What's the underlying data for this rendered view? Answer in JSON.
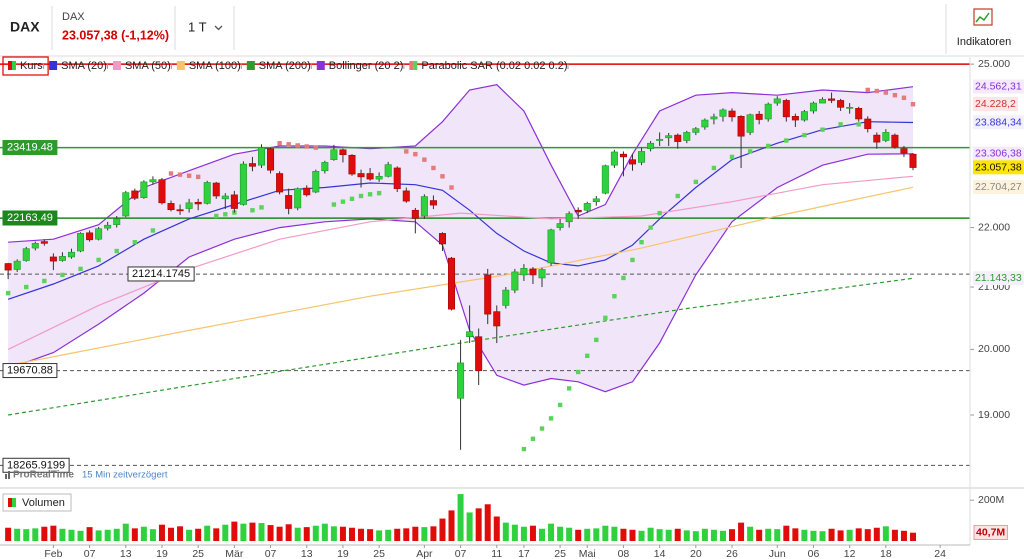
{
  "header": {
    "symbol": "DAX",
    "name": "DAX",
    "quote": "23.057,38 (-1,12%)",
    "interval": "1 T",
    "button": "Indikatoren"
  },
  "source": {
    "brand": "ProRealTime",
    "delay": "15 Min zeitverzögert"
  },
  "chart_data": {
    "type": "candlestick",
    "price_name": "Kurs",
    "up_color": "#2fd13f",
    "down_color": "#e00b0b",
    "log": true,
    "xlim": [
      -0.9,
      106.3
    ],
    "ylim": [
      18200,
      25120
    ],
    "yticks": [
      {
        "value": 19000,
        "label": "19.000"
      },
      {
        "value": 20000,
        "label": "20.000"
      },
      {
        "value": 21000,
        "label": "21.000"
      },
      {
        "value": 22000,
        "label": "22.000"
      },
      {
        "value": 25000,
        "label": "25.000"
      }
    ],
    "xticks": [
      {
        "value": 5,
        "label": "Feb"
      },
      {
        "value": 9,
        "label": "07"
      },
      {
        "value": 13,
        "label": "13"
      },
      {
        "value": 17,
        "label": "19"
      },
      {
        "value": 21,
        "label": "25"
      },
      {
        "value": 25,
        "label": "Mär"
      },
      {
        "value": 29,
        "label": "07"
      },
      {
        "value": 33,
        "label": "13"
      },
      {
        "value": 37,
        "label": "19"
      },
      {
        "value": 41,
        "label": "25"
      },
      {
        "value": 46,
        "label": "Apr"
      },
      {
        "value": 50,
        "label": "07"
      },
      {
        "value": 54,
        "label": "11"
      },
      {
        "value": 57,
        "label": "17"
      },
      {
        "value": 61,
        "label": "25"
      },
      {
        "value": 64,
        "label": "Mai"
      },
      {
        "value": 68,
        "label": "08"
      },
      {
        "value": 72,
        "label": "14"
      },
      {
        "value": 76,
        "label": "20"
      },
      {
        "value": 80,
        "label": "26"
      },
      {
        "value": 85,
        "label": "Jun"
      },
      {
        "value": 89,
        "label": "06"
      },
      {
        "value": 93,
        "label": "12"
      },
      {
        "value": 97,
        "label": "18"
      },
      {
        "value": 103,
        "label": "24"
      }
    ],
    "open": [
      21390,
      21290,
      21440,
      21650,
      21760,
      21500,
      21440,
      21500,
      21600,
      21910,
      21800,
      21990,
      22050,
      22200,
      22640,
      22520,
      22800,
      22840,
      22420,
      22310,
      22330,
      22440,
      22420,
      22780,
      22500,
      22570,
      22400,
      23130,
      23100,
      23400,
      22950,
      22560,
      22340,
      22690,
      22620,
      23000,
      23200,
      23380,
      23280,
      22950,
      22950,
      22850,
      22900,
      23050,
      22640,
      22300,
      22200,
      22470,
      21900,
      21480,
      19250,
      20200,
      20200,
      21200,
      20600,
      20700,
      20950,
      21200,
      21300,
      21150,
      21400,
      22000,
      22100,
      22300,
      22300,
      22450,
      22600,
      23100,
      23300,
      23200,
      23150,
      23400,
      23550,
      23600,
      23650,
      23550,
      23700,
      23800,
      23950,
      24000,
      24100,
      24000,
      23700,
      24040,
      23950,
      24250,
      24300,
      24000,
      23930,
      24100,
      24250,
      24330,
      24300,
      24150,
      24150,
      23950,
      23650,
      23550,
      23650,
      23400,
      23300
    ],
    "high": [
      21400,
      21460,
      21670,
      21760,
      21800,
      21560,
      21580,
      21640,
      21920,
      21950,
      22010,
      22100,
      22200,
      22640,
      22680,
      22830,
      22900,
      22870,
      22470,
      22400,
      22500,
      22500,
      22820,
      22800,
      22600,
      22640,
      23170,
      23250,
      23480,
      23420,
      22990,
      22680,
      22700,
      22740,
      23020,
      23180,
      23470,
      23400,
      23300,
      23020,
      23050,
      22970,
      23160,
      23080,
      22700,
      22340,
      22580,
      22560,
      21920,
      21500,
      20150,
      20700,
      20330,
      21300,
      20700,
      21000,
      21300,
      21380,
      21330,
      21320,
      21980,
      22150,
      22280,
      22350,
      22450,
      22550,
      23110,
      23380,
      23350,
      23300,
      23420,
      23540,
      23700,
      23690,
      23680,
      23730,
      23800,
      23960,
      24050,
      24150,
      24150,
      24020,
      24050,
      24100,
      24260,
      24380,
      24330,
      24050,
      24120,
      24280,
      24360,
      24450,
      24330,
      24250,
      24180,
      24000,
      23700,
      23760,
      23680,
      23450,
      23320
    ],
    "low": [
      21130,
      21250,
      21420,
      21610,
      21690,
      21280,
      21420,
      21470,
      21580,
      21760,
      21780,
      21950,
      22000,
      22180,
      22480,
      22500,
      22750,
      22400,
      22280,
      22220,
      22260,
      22300,
      22400,
      22500,
      22320,
      22260,
      22380,
      22990,
      23050,
      22950,
      22580,
      22230,
      22300,
      22540,
      22600,
      22950,
      23180,
      23150,
      22910,
      22700,
      22820,
      22800,
      22880,
      22620,
      22430,
      21900,
      22150,
      22320,
      21600,
      20620,
      18490,
      20100,
      19450,
      20400,
      20100,
      20650,
      20900,
      21100,
      21050,
      21000,
      21350,
      21950,
      22000,
      22150,
      22250,
      22380,
      22580,
      23050,
      22900,
      23000,
      23100,
      23350,
      23450,
      23450,
      23400,
      23500,
      23650,
      23750,
      23850,
      23900,
      23900,
      23050,
      23650,
      23850,
      23900,
      24200,
      23900,
      23800,
      23900,
      24050,
      24250,
      24250,
      24100,
      24050,
      23900,
      23700,
      23400,
      23520,
      23400,
      23250,
      23010
    ],
    "close": [
      21280,
      21430,
      21640,
      21730,
      21730,
      21430,
      21510,
      21580,
      21900,
      21790,
      21980,
      22040,
      22150,
      22610,
      22510,
      22800,
      22840,
      22430,
      22310,
      22290,
      22430,
      22410,
      22790,
      22550,
      22550,
      22330,
      23120,
      23080,
      23420,
      23010,
      22620,
      22330,
      22680,
      22570,
      22990,
      23150,
      23380,
      23290,
      22940,
      22890,
      22850,
      22900,
      23110,
      22680,
      22460,
      22160,
      22540,
      22390,
      21720,
      20640,
      19790,
      20280,
      19670,
      20560,
      20370,
      20950,
      21250,
      21310,
      21200,
      21290,
      21960,
      22070,
      22240,
      22270,
      22420,
      22500,
      23090,
      23340,
      23250,
      23120,
      23350,
      23500,
      23570,
      23640,
      23530,
      23700,
      23770,
      23930,
      23990,
      24120,
      23990,
      23630,
      24030,
      23940,
      24230,
      24330,
      23990,
      23930,
      24090,
      24250,
      24320,
      24300,
      24170,
      24170,
      23950,
      23770,
      23520,
      23700,
      23430,
      23320,
      23057.38
    ],
    "last_label": "23.057,38",
    "overlays": [
      {
        "name": "SMA (20)",
        "color": "#3434d6",
        "dash": false,
        "x": [
          0,
          5,
          10,
          15,
          20,
          25,
          30,
          35,
          40,
          45,
          48,
          51,
          54,
          57,
          60,
          63,
          66,
          69,
          72,
          76,
          80,
          85,
          90,
          95,
          100
        ],
        "values": [
          20800,
          21050,
          21350,
          21800,
          22150,
          22400,
          22650,
          22700,
          22780,
          22750,
          22650,
          22300,
          21900,
          21600,
          21400,
          21350,
          21450,
          21700,
          22150,
          22700,
          23200,
          23500,
          23750,
          23900,
          23884.34
        ],
        "end_label": "23.884,34"
      },
      {
        "name": "SMA (50)",
        "color": "#f29ac4",
        "dash": false,
        "x": [
          0,
          10,
          20,
          30,
          40,
          50,
          60,
          70,
          80,
          90,
          100
        ],
        "values": [
          20000,
          20700,
          21300,
          21800,
          22100,
          22250,
          22150,
          22200,
          22450,
          22750,
          22900
        ]
      },
      {
        "name": "SMA (100)",
        "color": "#f7c46c",
        "dash": false,
        "x": [
          0,
          20,
          40,
          55,
          70,
          85,
          100
        ],
        "values": [
          19750,
          20300,
          20850,
          21200,
          21650,
          22200,
          22704.27
        ],
        "end_label": "22.704,27"
      },
      {
        "name": "SMA (200)",
        "color": "#2f9a2f",
        "dash": true,
        "x": [
          0,
          25,
          50,
          75,
          100
        ],
        "values": [
          19000,
          19550,
          20100,
          20650,
          21143.33
        ],
        "end_label": "21.143,33"
      }
    ],
    "band": {
      "name": "Bollinger (20 2)",
      "color": "#8b2fd8",
      "fill": "rgba(200,160,235,0.28)",
      "x": [
        0,
        5,
        10,
        15,
        20,
        25,
        30,
        35,
        40,
        45,
        48,
        51,
        54,
        57,
        60,
        63,
        66,
        69,
        72,
        76,
        80,
        85,
        90,
        95,
        100
      ],
      "upper": [
        21750,
        21800,
        22050,
        22700,
        23000,
        23300,
        23450,
        23450,
        23400,
        23450,
        23900,
        24500,
        24600,
        24100,
        23100,
        22200,
        22400,
        23300,
        24100,
        24400,
        24450,
        24400,
        24500,
        24450,
        24562.31
      ],
      "lower": [
        19700,
        19950,
        20400,
        20900,
        21500,
        21800,
        22000,
        22100,
        22150,
        22100,
        21700,
        20300,
        19600,
        19450,
        19550,
        19500,
        19350,
        19500,
        20100,
        21200,
        22100,
        22700,
        23100,
        23300,
        23306.38
      ],
      "upper_end_label": "24.562,31",
      "lower_end_label": "23.306,38"
    },
    "sar": {
      "name": "Parabolic SAR (0.02 0.02 0.2)",
      "up_color": "#5bd35b",
      "down_color": "#e47a7a",
      "x": [
        0,
        2,
        4,
        6,
        8,
        10,
        12,
        14,
        16,
        18,
        19,
        20,
        21,
        23,
        24,
        25,
        27,
        28,
        30,
        31,
        32,
        33,
        34,
        36,
        37,
        38,
        39,
        40,
        41,
        44,
        45,
        46,
        47,
        48,
        49,
        57,
        58,
        59,
        60,
        61,
        62,
        63,
        64,
        65,
        66,
        67,
        68,
        69,
        70,
        71,
        72,
        74,
        76,
        78,
        80,
        82,
        84,
        86,
        88,
        90,
        92,
        94,
        95,
        96,
        97,
        98,
        99,
        100
      ],
      "values": [
        20900,
        21000,
        21100,
        21200,
        21300,
        21450,
        21600,
        21750,
        21950,
        22950,
        22930,
        22910,
        22890,
        22200,
        22230,
        22260,
        22300,
        22350,
        23500,
        23480,
        23460,
        23440,
        23420,
        22400,
        22450,
        22500,
        22550,
        22580,
        22600,
        23350,
        23300,
        23200,
        23050,
        22900,
        22700,
        18500,
        18650,
        18800,
        18950,
        19150,
        19400,
        19650,
        19900,
        20150,
        20500,
        20850,
        21150,
        21450,
        21750,
        22000,
        22250,
        22550,
        22800,
        23050,
        23250,
        23350,
        23450,
        23550,
        23650,
        23750,
        23850,
        23850,
        24500,
        24480,
        24450,
        24400,
        24350,
        24228.2
      ],
      "end_label": "24.228,2"
    },
    "levels": [
      {
        "value": 23419.48,
        "color": "#2e9a2e",
        "dash": false
      },
      {
        "value": 22163.49,
        "color": "#1d861d",
        "dash": false
      },
      {
        "value": 21214.1745,
        "color": "#555555",
        "dash": true
      },
      {
        "value": 19670.88,
        "color": "#555555",
        "dash": true
      },
      {
        "value": 18265.9199,
        "color": "#555555",
        "dash": true
      }
    ],
    "alert_line": {
      "value": 25000,
      "color": "#e00000"
    },
    "volume": {
      "title": "Volumen",
      "ylim": [
        0,
        250
      ],
      "yticks": [
        {
          "value": 200,
          "label": "200M"
        }
      ],
      "values": [
        65,
        60,
        58,
        62,
        70,
        75,
        60,
        55,
        50,
        68,
        52,
        55,
        60,
        85,
        62,
        70,
        58,
        80,
        65,
        72,
        55,
        60,
        75,
        62,
        80,
        95,
        85,
        90,
        88,
        78,
        70,
        82,
        65,
        68,
        75,
        85,
        72,
        70,
        65,
        60,
        58,
        52,
        55,
        60,
        62,
        70,
        68,
        72,
        110,
        150,
        230,
        140,
        160,
        180,
        120,
        90,
        80,
        70,
        75,
        60,
        85,
        70,
        65,
        55,
        60,
        62,
        75,
        70,
        60,
        55,
        50,
        65,
        58,
        55,
        60,
        52,
        48,
        60,
        55,
        50,
        58,
        90,
        70,
        55,
        60,
        58,
        75,
        62,
        55,
        50,
        48,
        60,
        52,
        55,
        62,
        58,
        65,
        72,
        55,
        50,
        40.7
      ],
      "last_label": "40,7M"
    }
  }
}
